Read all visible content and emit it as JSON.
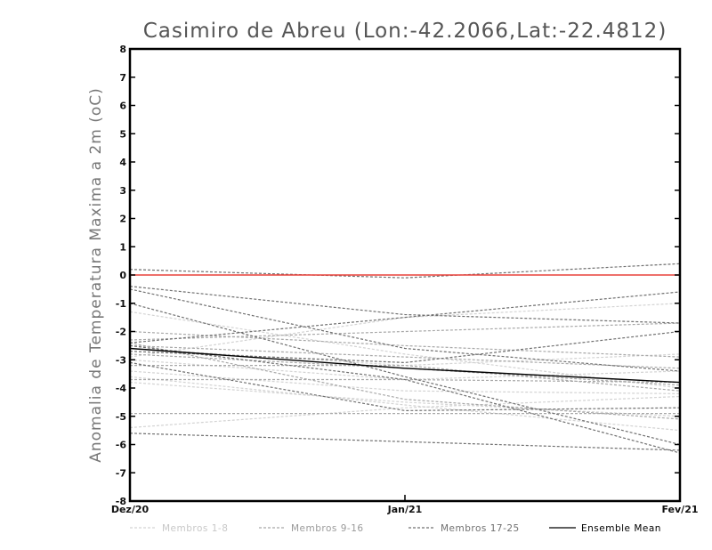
{
  "chart_data": {
    "type": "line",
    "title": "Casimiro de Abreu (Lon:-42.2066,Lat:-22.4812)",
    "xlabel": "",
    "ylabel": "Anomalia de Temperatura Maxima a 2m (oC)",
    "categories": [
      "Dez/20",
      "Jan/21",
      "Fev/21"
    ],
    "ylim": [
      -8,
      8
    ],
    "yticks": [
      -8,
      -7,
      -6,
      -5,
      -4,
      -3,
      -2,
      -1,
      0,
      1,
      2,
      3,
      4,
      5,
      6,
      7,
      8
    ],
    "grid": false,
    "legend_position": "bottom",
    "reference_line": {
      "y": 0,
      "color": "#e8403a"
    },
    "legend": [
      {
        "label": "Membros 1-8",
        "color": "#d3d3d3",
        "dashed": true
      },
      {
        "label": "Membros 9-16",
        "color": "#a8a8a8",
        "dashed": true
      },
      {
        "label": "Membros 17-25",
        "color": "#707070",
        "dashed": true
      },
      {
        "label": "Ensemble Mean",
        "color": "#000000",
        "dashed": false
      }
    ],
    "series": [
      {
        "group": 0,
        "values": [
          -3.0,
          -3.7,
          -3.4
        ],
        "color": "#d3d3d3"
      },
      {
        "group": 0,
        "values": [
          -3.4,
          -4.1,
          -4.2
        ],
        "color": "#d3d3d3"
      },
      {
        "group": 0,
        "values": [
          -3.8,
          -4.5,
          -5.0
        ],
        "color": "#d3d3d3"
      },
      {
        "group": 0,
        "values": [
          -5.4,
          -4.7,
          -4.3
        ],
        "color": "#d3d3d3"
      },
      {
        "group": 0,
        "values": [
          -2.6,
          -3.2,
          -2.8
        ],
        "color": "#d3d3d3"
      },
      {
        "group": 0,
        "values": [
          -1.3,
          -2.8,
          -4.0
        ],
        "color": "#d3d3d3"
      },
      {
        "group": 0,
        "values": [
          -2.9,
          -1.5,
          -1.0
        ],
        "color": "#d3d3d3"
      },
      {
        "group": 0,
        "values": [
          -3.6,
          -4.6,
          -5.5
        ],
        "color": "#d3d3d3"
      },
      {
        "group": 1,
        "values": [
          -2.3,
          -2.0,
          -1.7
        ],
        "color": "#a8a8a8"
      },
      {
        "group": 1,
        "values": [
          -2.5,
          -2.9,
          -3.3
        ],
        "color": "#a8a8a8"
      },
      {
        "group": 1,
        "values": [
          -3.7,
          -3.7,
          -3.8
        ],
        "color": "#a8a8a8"
      },
      {
        "group": 1,
        "values": [
          -4.9,
          -4.9,
          -4.9
        ],
        "color": "#a8a8a8"
      },
      {
        "group": 1,
        "values": [
          -2.8,
          -3.3,
          -3.9
        ],
        "color": "#a8a8a8"
      },
      {
        "group": 1,
        "values": [
          -2.4,
          -4.4,
          -5.1
        ],
        "color": "#a8a8a8"
      },
      {
        "group": 1,
        "values": [
          -3.2,
          -3.2,
          -4.1
        ],
        "color": "#a8a8a8"
      },
      {
        "group": 1,
        "values": [
          -2.0,
          -2.5,
          -2.9
        ],
        "color": "#a8a8a8"
      },
      {
        "group": 2,
        "values": [
          0.2,
          -0.1,
          0.4
        ],
        "color": "#707070"
      },
      {
        "group": 2,
        "values": [
          -0.4,
          -1.4,
          -1.7
        ],
        "color": "#707070"
      },
      {
        "group": 2,
        "values": [
          -0.5,
          -2.6,
          -3.4
        ],
        "color": "#707070"
      },
      {
        "group": 2,
        "values": [
          -1.0,
          -3.6,
          -6.0
        ],
        "color": "#707070"
      },
      {
        "group": 2,
        "values": [
          -2.4,
          -1.5,
          -0.6
        ],
        "color": "#707070"
      },
      {
        "group": 2,
        "values": [
          -2.7,
          -3.1,
          -2.0
        ],
        "color": "#707070"
      },
      {
        "group": 2,
        "values": [
          -5.6,
          -5.9,
          -6.2
        ],
        "color": "#707070"
      },
      {
        "group": 2,
        "values": [
          -2.5,
          -3.7,
          -6.3
        ],
        "color": "#707070"
      },
      {
        "group": 2,
        "values": [
          -3.1,
          -4.8,
          -4.7
        ],
        "color": "#707070"
      },
      {
        "group": 3,
        "values": [
          -2.6,
          -3.3,
          -3.8
        ],
        "color": "#000000"
      }
    ]
  }
}
